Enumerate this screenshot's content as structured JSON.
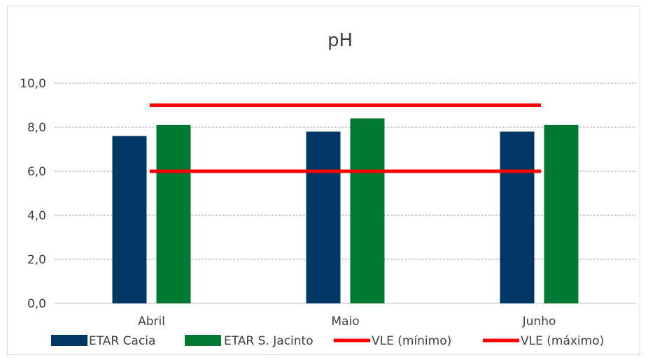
{
  "chart_data": {
    "type": "bar",
    "title": "pH",
    "categories": [
      "Abril",
      "Maio",
      "Junho"
    ],
    "series": [
      {
        "name": "ETAR Cacia",
        "kind": "bar",
        "color": "#003865",
        "values": [
          7.6,
          7.8,
          7.8
        ]
      },
      {
        "name": "ETAR S. Jacinto",
        "kind": "bar",
        "color": "#007A33",
        "values": [
          8.1,
          8.4,
          8.1
        ]
      },
      {
        "name": "VLE (mínimo)",
        "kind": "line",
        "color": "#FF0000",
        "values": [
          6.0,
          6.0,
          6.0
        ]
      },
      {
        "name": "VLE (máximo)",
        "kind": "line",
        "color": "#FF0000",
        "values": [
          9.0,
          9.0,
          9.0
        ]
      }
    ],
    "ylim": [
      0,
      10
    ],
    "yticks": [
      "0,0",
      "2,0",
      "4,0",
      "6,0",
      "8,0",
      "10,0"
    ],
    "ytick_values": [
      0,
      2,
      4,
      6,
      8,
      10
    ],
    "grid": true,
    "legend_position": "bottom"
  }
}
